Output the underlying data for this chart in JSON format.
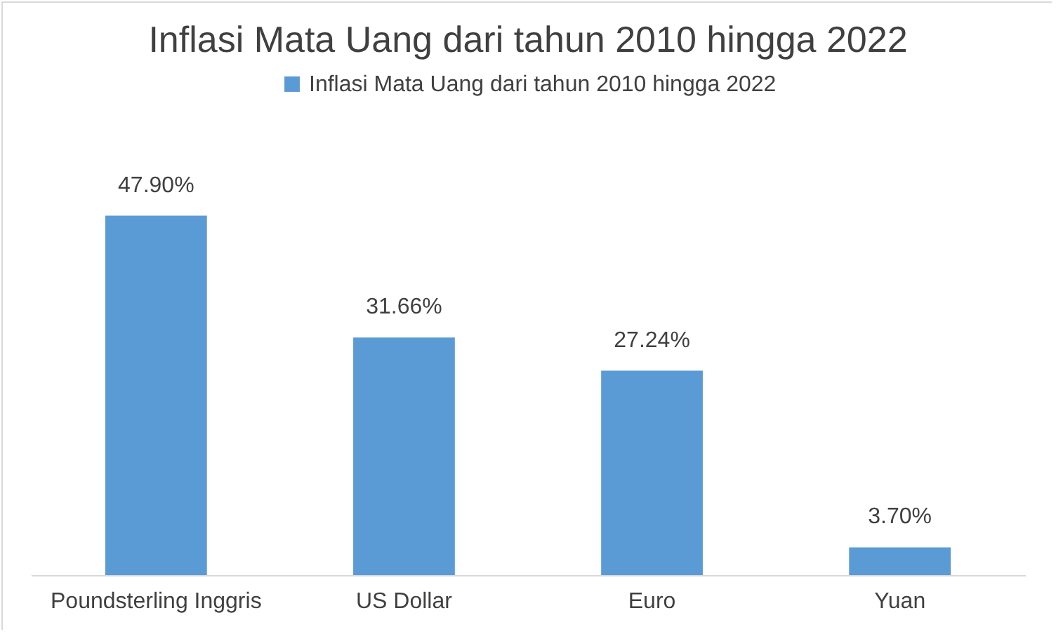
{
  "chart_data": {
    "type": "bar",
    "title": "Inflasi Mata Uang dari tahun 2010 hingga 2022",
    "categories": [
      "Poundsterling Inggris",
      "US Dollar",
      "Euro",
      "Yuan"
    ],
    "series": [
      {
        "name": "Inflasi Mata Uang dari tahun 2010 hingga 2022",
        "color": "#5b9bd5",
        "values": [
          47.9,
          31.66,
          27.24,
          3.7
        ],
        "value_labels": [
          "47.90%",
          "31.66%",
          "27.24%",
          "3.70%"
        ]
      }
    ],
    "legend": "top"
  }
}
